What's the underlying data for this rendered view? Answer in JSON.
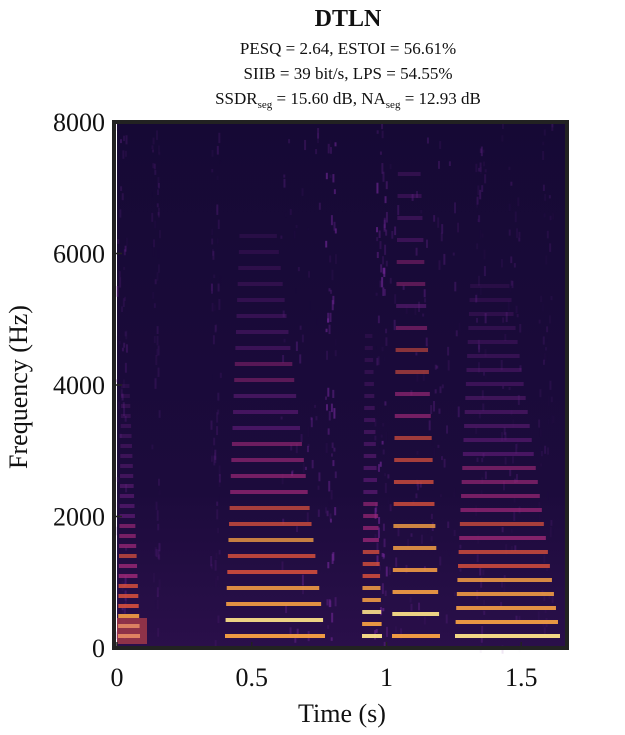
{
  "chart_data": {
    "type": "spectrogram",
    "title": "DTLN",
    "subtitle": [
      "PESQ = 2.64, ESTOI = 56.61%",
      "SIIB = 39 bit/s, LPS = 54.55%",
      [
        "SSDR",
        "seg",
        " = 15.60 dB, NA",
        "seg",
        " = 12.93 dB"
      ]
    ],
    "xlabel": "Time (s)",
    "ylabel": "Frequency (Hz)",
    "xlim": [
      0,
      1.67
    ],
    "xticks": [
      0,
      0.5,
      1,
      1.5
    ],
    "ylim": [
      0,
      8000
    ],
    "yticks": [
      0,
      2000,
      4000,
      6000,
      8000
    ]
  }
}
